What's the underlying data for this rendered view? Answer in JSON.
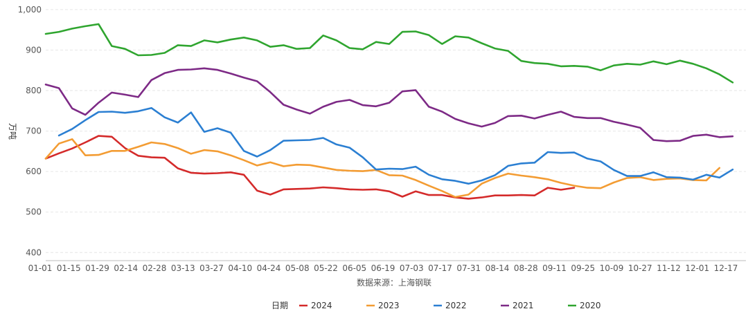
{
  "chart_data": {
    "type": "line",
    "ylabel": "万吨",
    "xlabel": "数据来源：上海钢联",
    "legend_title": "日期",
    "legend_position": "bottom",
    "ylim": [
      380,
      1010
    ],
    "yticks": [
      400,
      500,
      600,
      700,
      800,
      900,
      1000
    ],
    "ytick_labels": [
      "400",
      "500",
      "600",
      "700",
      "800",
      "900",
      "1,000"
    ],
    "grid": true,
    "xtick_labels": [
      "01-01",
      "01-15",
      "01-29",
      "02-14",
      "02-28",
      "03-13",
      "03-27",
      "04-10",
      "04-24",
      "05-08",
      "05-22",
      "06-05",
      "06-19",
      "07-03",
      "07-17",
      "07-31",
      "08-14",
      "08-28",
      "09-11",
      "09-25",
      "10-09",
      "10-27",
      "11-12",
      "12-01",
      "12-17"
    ],
    "x_count": 54,
    "series": [
      {
        "name": "2024",
        "color": "#d42a2a",
        "values": [
          632,
          645,
          657,
          672,
          688,
          686,
          658,
          639,
          635,
          634,
          608,
          597,
          595,
          596,
          598,
          592,
          553,
          543,
          556,
          557,
          558,
          561,
          559,
          556,
          555,
          556,
          551,
          538,
          551,
          542,
          542,
          536,
          533,
          536,
          541,
          541,
          542,
          541,
          560,
          555,
          560
        ]
      },
      {
        "name": "2023",
        "color": "#f39c33",
        "values": [
          632,
          669,
          680,
          640,
          641,
          651,
          651,
          661,
          672,
          668,
          658,
          644,
          653,
          650,
          640,
          628,
          615,
          623,
          613,
          617,
          616,
          610,
          604,
          602,
          601,
          604,
          591,
          590,
          579,
          565,
          552,
          537,
          543,
          570,
          584,
          595,
          590,
          586,
          581,
          572,
          565,
          560,
          559,
          573,
          584,
          586,
          579,
          582,
          583,
          579,
          578,
          609
        ]
      },
      {
        "name": "2022",
        "color": "#2b7fd2",
        "values": [
          null,
          689,
          705,
          727,
          747,
          748,
          745,
          749,
          757,
          734,
          721,
          746,
          698,
          707,
          696,
          651,
          637,
          653,
          676,
          677,
          678,
          683,
          667,
          659,
          635,
          605,
          607,
          606,
          612,
          592,
          581,
          577,
          570,
          578,
          591,
          614,
          620,
          622,
          648,
          646,
          647,
          632,
          625,
          604,
          589,
          589,
          598,
          586,
          585,
          580,
          592,
          585,
          605
        ]
      },
      {
        "name": "2021",
        "color": "#7d2a86",
        "values": [
          815,
          806,
          756,
          740,
          770,
          795,
          790,
          784,
          826,
          843,
          851,
          852,
          855,
          851,
          842,
          832,
          823,
          796,
          765,
          753,
          743,
          760,
          772,
          777,
          764,
          761,
          770,
          798,
          801,
          760,
          748,
          730,
          719,
          711,
          720,
          737,
          738,
          731,
          740,
          748,
          735,
          732,
          732,
          723,
          716,
          708,
          678,
          675,
          676,
          688,
          691,
          685,
          687
        ]
      },
      {
        "name": "2020",
        "color": "#2fa52f",
        "values": [
          940,
          945,
          953,
          959,
          964,
          910,
          903,
          887,
          888,
          893,
          912,
          910,
          924,
          919,
          926,
          931,
          924,
          908,
          912,
          903,
          905,
          936,
          924,
          905,
          902,
          920,
          915,
          945,
          946,
          937,
          915,
          934,
          931,
          917,
          904,
          898,
          873,
          868,
          866,
          860,
          861,
          859,
          850,
          862,
          866,
          864,
          872,
          865,
          874,
          866,
          855,
          840,
          820
        ]
      }
    ]
  }
}
